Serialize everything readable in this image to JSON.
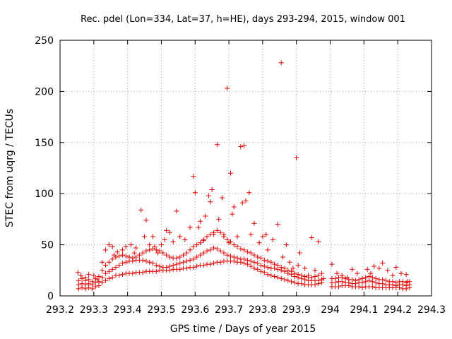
{
  "chart_data": {
    "type": "scatter",
    "title": "Rec. pdel (Lon=334, Lat=37, h=HE), days 293-294, 2015, window 001",
    "xlabel": "GPS time / Days of year 2015",
    "ylabel": "STEC from uqrg / TECUs",
    "xlim": [
      293.2,
      294.3
    ],
    "ylim": [
      0,
      250
    ],
    "xticks": [
      293.2,
      293.3,
      293.4,
      293.5,
      293.6,
      293.7,
      293.8,
      293.9,
      294,
      294.1,
      294.2,
      294.3
    ],
    "xtick_labels": [
      "293.2",
      "293.3",
      "293.4",
      "293.5",
      "293.6",
      "293.7",
      "293.8",
      "293.9",
      "294",
      "294.1",
      "294.2",
      "294.3"
    ],
    "yticks": [
      0,
      50,
      100,
      150,
      200,
      250
    ],
    "ytick_labels": [
      "0",
      "50",
      "100",
      "150",
      "200",
      "250"
    ],
    "grid": true,
    "marker": "plus",
    "color": "#e00000",
    "points": [
      [
        293.253,
        23
      ],
      [
        293.262,
        20
      ],
      [
        293.275,
        18
      ],
      [
        293.285,
        21
      ],
      [
        293.3,
        20
      ],
      [
        293.31,
        16
      ],
      [
        293.325,
        33
      ],
      [
        293.335,
        45
      ],
      [
        293.345,
        50
      ],
      [
        293.355,
        48
      ],
      [
        293.36,
        40
      ],
      [
        293.37,
        43
      ],
      [
        293.385,
        45
      ],
      [
        293.395,
        48
      ],
      [
        293.41,
        50
      ],
      [
        293.42,
        42
      ],
      [
        293.425,
        47
      ],
      [
        293.44,
        84
      ],
      [
        293.45,
        58
      ],
      [
        293.455,
        74
      ],
      [
        293.465,
        50
      ],
      [
        293.475,
        58
      ],
      [
        293.48,
        48
      ],
      [
        293.49,
        42
      ],
      [
        293.5,
        50
      ],
      [
        293.51,
        55
      ],
      [
        293.515,
        64
      ],
      [
        293.525,
        62
      ],
      [
        293.535,
        53
      ],
      [
        293.545,
        83
      ],
      [
        293.555,
        58
      ],
      [
        293.57,
        55
      ],
      [
        293.585,
        67
      ],
      [
        293.595,
        117
      ],
      [
        293.6,
        101
      ],
      [
        293.61,
        67
      ],
      [
        293.615,
        73
      ],
      [
        293.625,
        54
      ],
      [
        293.63,
        78
      ],
      [
        293.64,
        98
      ],
      [
        293.645,
        92
      ],
      [
        293.65,
        104
      ],
      [
        293.655,
        60
      ],
      [
        293.665,
        148
      ],
      [
        293.67,
        75
      ],
      [
        293.68,
        96
      ],
      [
        293.685,
        60
      ],
      [
        293.695,
        203
      ],
      [
        293.7,
        52
      ],
      [
        293.705,
        120
      ],
      [
        293.71,
        80
      ],
      [
        293.715,
        87
      ],
      [
        293.725,
        58
      ],
      [
        293.735,
        146
      ],
      [
        293.74,
        91
      ],
      [
        293.745,
        147
      ],
      [
        293.75,
        93
      ],
      [
        293.76,
        101
      ],
      [
        293.765,
        60
      ],
      [
        293.775,
        71
      ],
      [
        293.79,
        52
      ],
      [
        293.8,
        58
      ],
      [
        293.81,
        60
      ],
      [
        293.815,
        45
      ],
      [
        293.83,
        55
      ],
      [
        293.845,
        70
      ],
      [
        293.855,
        228
      ],
      [
        293.86,
        38
      ],
      [
        293.87,
        50
      ],
      [
        293.88,
        33
      ],
      [
        293.89,
        27
      ],
      [
        293.9,
        135
      ],
      [
        293.905,
        30
      ],
      [
        293.91,
        42
      ],
      [
        293.925,
        27
      ],
      [
        293.935,
        20
      ],
      [
        293.945,
        57
      ],
      [
        293.955,
        25
      ],
      [
        293.965,
        53
      ],
      [
        293.98,
        17
      ],
      [
        294.005,
        31
      ],
      [
        294.02,
        22
      ],
      [
        294.035,
        20
      ],
      [
        294.05,
        18
      ],
      [
        294.065,
        26
      ],
      [
        294.08,
        22
      ],
      [
        294.095,
        17
      ],
      [
        294.11,
        26
      ],
      [
        294.12,
        22
      ],
      [
        294.13,
        29
      ],
      [
        294.145,
        27
      ],
      [
        294.155,
        32
      ],
      [
        294.17,
        25
      ],
      [
        294.185,
        20
      ],
      [
        294.195,
        28
      ],
      [
        294.21,
        22
      ],
      [
        294.225,
        21
      ],
      [
        294.23,
        14
      ],
      [
        293.255,
        7
      ],
      [
        293.265,
        8
      ],
      [
        293.275,
        7
      ],
      [
        293.285,
        8
      ],
      [
        293.295,
        7
      ],
      [
        293.305,
        9
      ],
      [
        293.315,
        10
      ],
      [
        293.325,
        13
      ],
      [
        293.335,
        15
      ],
      [
        293.345,
        17
      ],
      [
        293.355,
        18
      ],
      [
        293.365,
        20
      ],
      [
        293.375,
        20
      ],
      [
        293.385,
        21
      ],
      [
        293.395,
        22
      ],
      [
        293.405,
        22
      ],
      [
        293.415,
        22
      ],
      [
        293.425,
        23
      ],
      [
        293.435,
        23
      ],
      [
        293.445,
        23
      ],
      [
        293.455,
        24
      ],
      [
        293.465,
        24
      ],
      [
        293.475,
        24
      ],
      [
        293.485,
        24
      ],
      [
        293.495,
        25
      ],
      [
        293.505,
        25
      ],
      [
        293.515,
        25
      ],
      [
        293.525,
        25
      ],
      [
        293.535,
        26
      ],
      [
        293.545,
        26
      ],
      [
        293.555,
        26
      ],
      [
        293.565,
        27
      ],
      [
        293.575,
        27
      ],
      [
        293.585,
        28
      ],
      [
        293.595,
        28
      ],
      [
        293.605,
        29
      ],
      [
        293.615,
        30
      ],
      [
        293.625,
        30
      ],
      [
        293.635,
        31
      ],
      [
        293.645,
        31
      ],
      [
        293.655,
        32
      ],
      [
        293.665,
        33
      ],
      [
        293.675,
        33
      ],
      [
        293.685,
        34
      ],
      [
        293.695,
        34
      ],
      [
        293.705,
        34
      ],
      [
        293.715,
        34
      ],
      [
        293.725,
        33
      ],
      [
        293.735,
        33
      ],
      [
        293.745,
        32
      ],
      [
        293.755,
        31
      ],
      [
        293.765,
        29
      ],
      [
        293.775,
        27
      ],
      [
        293.785,
        26
      ],
      [
        293.795,
        24
      ],
      [
        293.805,
        23
      ],
      [
        293.815,
        21
      ],
      [
        293.825,
        20
      ],
      [
        293.835,
        19
      ],
      [
        293.845,
        18
      ],
      [
        293.855,
        17
      ],
      [
        293.865,
        16
      ],
      [
        293.875,
        15
      ],
      [
        293.885,
        14
      ],
      [
        293.895,
        13
      ],
      [
        293.905,
        12
      ],
      [
        293.915,
        12
      ],
      [
        293.925,
        11
      ],
      [
        293.935,
        11
      ],
      [
        293.945,
        11
      ],
      [
        293.955,
        11
      ],
      [
        293.965,
        12
      ],
      [
        293.975,
        13
      ],
      [
        294.005,
        9
      ],
      [
        294.015,
        9
      ],
      [
        294.025,
        9
      ],
      [
        294.035,
        10
      ],
      [
        294.045,
        10
      ],
      [
        294.055,
        10
      ],
      [
        294.065,
        9
      ],
      [
        294.075,
        9
      ],
      [
        294.085,
        9
      ],
      [
        294.095,
        8
      ],
      [
        294.105,
        9
      ],
      [
        294.115,
        9
      ],
      [
        294.125,
        9
      ],
      [
        294.135,
        8
      ],
      [
        294.145,
        8
      ],
      [
        294.155,
        8
      ],
      [
        294.165,
        8
      ],
      [
        294.175,
        8
      ],
      [
        294.185,
        8
      ],
      [
        294.195,
        8
      ],
      [
        294.205,
        8
      ],
      [
        294.215,
        7
      ],
      [
        294.225,
        7
      ],
      [
        294.235,
        8
      ],
      [
        293.255,
        11
      ],
      [
        293.265,
        12
      ],
      [
        293.275,
        11
      ],
      [
        293.285,
        12
      ],
      [
        293.295,
        11
      ],
      [
        293.305,
        13
      ],
      [
        293.315,
        14
      ],
      [
        293.325,
        18
      ],
      [
        293.335,
        22
      ],
      [
        293.345,
        24
      ],
      [
        293.355,
        26
      ],
      [
        293.365,
        28
      ],
      [
        293.375,
        30
      ],
      [
        293.385,
        32
      ],
      [
        293.395,
        33
      ],
      [
        293.405,
        34
      ],
      [
        293.415,
        34
      ],
      [
        293.425,
        35
      ],
      [
        293.435,
        35
      ],
      [
        293.445,
        35
      ],
      [
        293.455,
        34
      ],
      [
        293.465,
        33
      ],
      [
        293.475,
        32
      ],
      [
        293.485,
        30
      ],
      [
        293.495,
        29
      ],
      [
        293.505,
        28
      ],
      [
        293.515,
        28
      ],
      [
        293.525,
        29
      ],
      [
        293.535,
        30
      ],
      [
        293.545,
        31
      ],
      [
        293.555,
        32
      ],
      [
        293.565,
        33
      ],
      [
        293.575,
        34
      ],
      [
        293.585,
        35
      ],
      [
        293.595,
        36
      ],
      [
        293.605,
        38
      ],
      [
        293.615,
        40
      ],
      [
        293.625,
        42
      ],
      [
        293.635,
        44
      ],
      [
        293.645,
        45
      ],
      [
        293.655,
        47
      ],
      [
        293.665,
        46
      ],
      [
        293.675,
        44
      ],
      [
        293.685,
        42
      ],
      [
        293.695,
        40
      ],
      [
        293.705,
        39
      ],
      [
        293.715,
        38
      ],
      [
        293.725,
        37
      ],
      [
        293.735,
        36
      ],
      [
        293.745,
        36
      ],
      [
        293.755,
        35
      ],
      [
        293.765,
        34
      ],
      [
        293.775,
        33
      ],
      [
        293.785,
        32
      ],
      [
        293.795,
        30
      ],
      [
        293.805,
        29
      ],
      [
        293.815,
        28
      ],
      [
        293.825,
        27
      ],
      [
        293.835,
        27
      ],
      [
        293.845,
        26
      ],
      [
        293.855,
        25
      ],
      [
        293.865,
        24
      ],
      [
        293.875,
        22
      ],
      [
        293.885,
        21
      ],
      [
        293.895,
        19
      ],
      [
        293.905,
        18
      ],
      [
        293.915,
        17
      ],
      [
        293.925,
        16
      ],
      [
        293.935,
        15
      ],
      [
        293.945,
        15
      ],
      [
        293.955,
        15
      ],
      [
        293.965,
        15
      ],
      [
        293.975,
        16
      ],
      [
        294.005,
        13
      ],
      [
        294.015,
        13
      ],
      [
        294.025,
        14
      ],
      [
        294.035,
        14
      ],
      [
        294.045,
        13
      ],
      [
        294.055,
        13
      ],
      [
        294.065,
        12
      ],
      [
        294.075,
        12
      ],
      [
        294.085,
        13
      ],
      [
        294.095,
        13
      ],
      [
        294.105,
        14
      ],
      [
        294.115,
        15
      ],
      [
        294.125,
        14
      ],
      [
        294.135,
        13
      ],
      [
        294.145,
        12
      ],
      [
        294.155,
        12
      ],
      [
        294.165,
        11
      ],
      [
        294.175,
        11
      ],
      [
        294.185,
        11
      ],
      [
        294.195,
        10
      ],
      [
        294.205,
        11
      ],
      [
        294.215,
        11
      ],
      [
        294.225,
        10
      ],
      [
        294.235,
        11
      ],
      [
        293.255,
        15
      ],
      [
        293.265,
        17
      ],
      [
        293.275,
        15
      ],
      [
        293.285,
        16
      ],
      [
        293.295,
        14
      ],
      [
        293.305,
        17
      ],
      [
        293.315,
        19
      ],
      [
        293.325,
        25
      ],
      [
        293.335,
        30
      ],
      [
        293.345,
        33
      ],
      [
        293.355,
        36
      ],
      [
        293.365,
        38
      ],
      [
        293.375,
        39
      ],
      [
        293.385,
        40
      ],
      [
        293.395,
        39
      ],
      [
        293.405,
        38
      ],
      [
        293.415,
        37
      ],
      [
        293.425,
        38
      ],
      [
        293.435,
        40
      ],
      [
        293.445,
        42
      ],
      [
        293.455,
        44
      ],
      [
        293.465,
        45
      ],
      [
        293.475,
        46
      ],
      [
        293.485,
        45
      ],
      [
        293.495,
        44
      ],
      [
        293.505,
        42
      ],
      [
        293.515,
        40
      ],
      [
        293.525,
        38
      ],
      [
        293.535,
        37
      ],
      [
        293.545,
        37
      ],
      [
        293.555,
        38
      ],
      [
        293.565,
        40
      ],
      [
        293.575,
        42
      ],
      [
        293.585,
        45
      ],
      [
        293.595,
        48
      ],
      [
        293.605,
        50
      ],
      [
        293.615,
        52
      ],
      [
        293.625,
        55
      ],
      [
        293.635,
        58
      ],
      [
        293.645,
        60
      ],
      [
        293.655,
        62
      ],
      [
        293.665,
        64
      ],
      [
        293.675,
        62
      ],
      [
        293.685,
        58
      ],
      [
        293.695,
        55
      ],
      [
        293.705,
        53
      ],
      [
        293.715,
        50
      ],
      [
        293.725,
        48
      ],
      [
        293.735,
        46
      ],
      [
        293.745,
        45
      ],
      [
        293.755,
        43
      ],
      [
        293.765,
        42
      ],
      [
        293.775,
        40
      ],
      [
        293.785,
        38
      ],
      [
        293.795,
        37
      ],
      [
        293.805,
        35
      ],
      [
        293.815,
        34
      ],
      [
        293.825,
        33
      ],
      [
        293.835,
        31
      ],
      [
        293.845,
        30
      ],
      [
        293.855,
        28
      ],
      [
        293.865,
        27
      ],
      [
        293.875,
        25
      ],
      [
        293.885,
        24
      ],
      [
        293.895,
        22
      ],
      [
        293.905,
        21
      ],
      [
        293.915,
        20
      ],
      [
        293.925,
        19
      ],
      [
        293.935,
        18
      ],
      [
        293.945,
        18
      ],
      [
        293.955,
        19
      ],
      [
        293.965,
        20
      ],
      [
        293.975,
        22
      ],
      [
        294.005,
        17
      ],
      [
        294.015,
        17
      ],
      [
        294.025,
        18
      ],
      [
        294.035,
        18
      ],
      [
        294.045,
        17
      ],
      [
        294.055,
        16
      ],
      [
        294.065,
        16
      ],
      [
        294.075,
        15
      ],
      [
        294.085,
        16
      ],
      [
        294.095,
        17
      ],
      [
        294.105,
        18
      ],
      [
        294.115,
        19
      ],
      [
        294.125,
        18
      ],
      [
        294.135,
        17
      ],
      [
        294.145,
        16
      ],
      [
        294.155,
        16
      ],
      [
        294.165,
        15
      ],
      [
        294.175,
        14
      ],
      [
        294.185,
        14
      ],
      [
        294.195,
        13
      ],
      [
        294.205,
        14
      ],
      [
        294.215,
        14
      ],
      [
        294.225,
        13
      ],
      [
        294.235,
        14
      ]
    ]
  }
}
